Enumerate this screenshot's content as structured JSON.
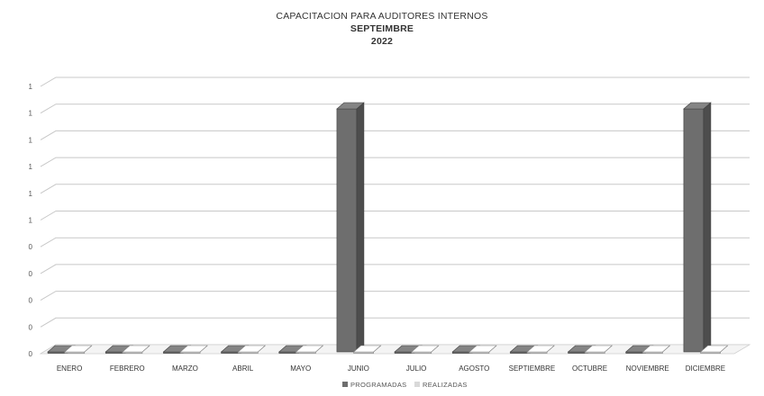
{
  "chart_data": {
    "type": "bar",
    "title": "CAPACITACION PARA AUDITORES INTERNOS",
    "subtitle": "SEPTEIMBRE",
    "subtitle2": "2022",
    "categories": [
      "ENERO",
      "FEBRERO",
      "MARZO",
      "ABRIL",
      "MAYO",
      "JUNIO",
      "JULIO",
      "AGOSTO",
      "SEPTIEMBRE",
      "OCTUBRE",
      "NOVIEMBRE",
      "DICIEMBRE"
    ],
    "series": [
      {
        "name": "PROGRAMADAS",
        "values": [
          0,
          0,
          0,
          0,
          0,
          1,
          0,
          0,
          0,
          0,
          0,
          1
        ],
        "color": "#6e6e6e"
      },
      {
        "name": "REALIZADAS",
        "values": [
          0,
          0,
          0,
          0,
          0,
          0,
          0,
          0,
          0,
          0,
          0,
          0
        ],
        "color": "#d9d9d9"
      }
    ],
    "ytick_labels": [
      "0",
      "0",
      "0",
      "0",
      "0",
      "1",
      "1",
      "1",
      "1",
      "1",
      "1"
    ],
    "ylim": [
      0,
      1.1
    ],
    "grid": true,
    "legend_position": "bottom",
    "style": "3d-bar"
  }
}
